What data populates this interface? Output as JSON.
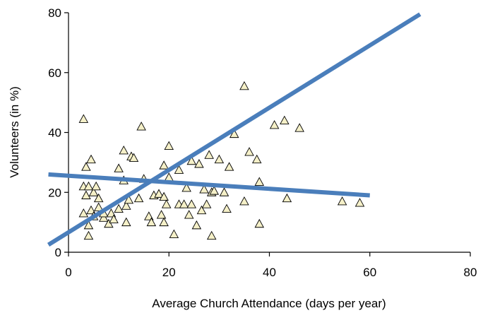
{
  "chart_data": {
    "type": "scatter",
    "xlabel": "Average Church Attendance (days per year)",
    "ylabel": "Volunteers (in %)",
    "xlim": [
      0,
      80
    ],
    "ylim": [
      0,
      80
    ],
    "xticks": [
      "0",
      "20",
      "40",
      "60",
      "80"
    ],
    "yticks": [
      "0",
      "20",
      "40",
      "60",
      "80"
    ],
    "grid": false,
    "marker": "triangle",
    "marker_color": "#f5f0c8",
    "line_color": "#4a7ebb",
    "series": [
      {
        "points": [
          [
            3,
            44.5
          ],
          [
            3,
            22
          ],
          [
            3,
            13
          ],
          [
            3.5,
            19
          ],
          [
            3.5,
            28.5
          ],
          [
            4,
            22
          ],
          [
            4,
            5.5
          ],
          [
            4,
            9
          ],
          [
            4.5,
            31
          ],
          [
            4.5,
            14
          ],
          [
            5,
            20
          ],
          [
            5,
            12
          ],
          [
            5.5,
            22
          ],
          [
            6,
            18
          ],
          [
            6,
            15
          ],
          [
            7,
            11.5
          ],
          [
            7,
            13
          ],
          [
            8,
            9.5
          ],
          [
            8.5,
            13
          ],
          [
            9,
            11
          ],
          [
            10,
            14.5
          ],
          [
            10,
            28
          ],
          [
            11,
            34
          ],
          [
            11,
            24
          ],
          [
            11.5,
            15.5
          ],
          [
            11.5,
            10
          ],
          [
            12,
            17.5
          ],
          [
            12.5,
            32
          ],
          [
            13,
            31.5
          ],
          [
            14,
            18
          ],
          [
            14.5,
            42
          ],
          [
            15,
            24.5
          ],
          [
            16,
            12
          ],
          [
            16.5,
            10
          ],
          [
            17,
            19
          ],
          [
            18,
            19.5
          ],
          [
            18.5,
            12.5
          ],
          [
            19,
            29
          ],
          [
            19,
            18.5
          ],
          [
            19,
            10
          ],
          [
            19.5,
            16
          ],
          [
            20,
            35.5
          ],
          [
            20,
            25
          ],
          [
            21,
            6
          ],
          [
            22,
            16
          ],
          [
            22,
            27.5
          ],
          [
            23,
            16
          ],
          [
            23.5,
            21.5
          ],
          [
            24,
            12.5
          ],
          [
            24.5,
            16
          ],
          [
            24.5,
            30.5
          ],
          [
            25.5,
            9
          ],
          [
            26,
            29.5
          ],
          [
            26.5,
            14
          ],
          [
            27,
            21
          ],
          [
            27.5,
            16
          ],
          [
            28,
            32.5
          ],
          [
            28.5,
            5.5
          ],
          [
            28.5,
            20
          ],
          [
            29,
            20.5
          ],
          [
            30,
            31
          ],
          [
            31,
            20
          ],
          [
            31.5,
            14.5
          ],
          [
            32,
            28.5
          ],
          [
            33,
            39.5
          ],
          [
            35,
            55.5
          ],
          [
            35,
            17
          ],
          [
            36,
            33.5
          ],
          [
            37.5,
            31
          ],
          [
            38,
            23.5
          ],
          [
            38,
            9.5
          ],
          [
            41,
            42.5
          ],
          [
            43,
            44
          ],
          [
            43.5,
            18
          ],
          [
            46,
            41.5
          ],
          [
            54.5,
            17
          ],
          [
            58,
            16.5
          ]
        ]
      }
    ],
    "trendlines": [
      {
        "x": [
          -4,
          70
        ],
        "y": [
          2.5,
          79.5
        ]
      },
      {
        "x": [
          -4,
          60
        ],
        "y": [
          26,
          19
        ]
      }
    ]
  }
}
